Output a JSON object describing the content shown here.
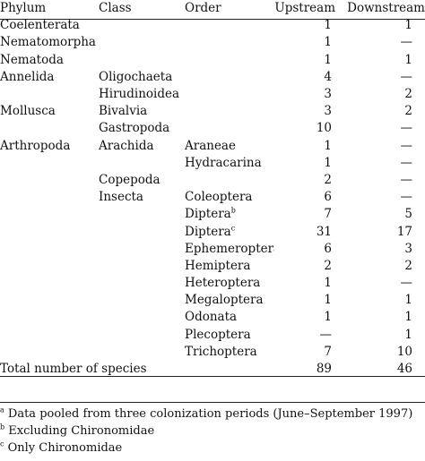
{
  "headers": {
    "phylum": "Phylum",
    "class": "Class",
    "order": "Order",
    "upstream": "Upstream",
    "downstream": "Downstream"
  },
  "rows": [
    {
      "phylum": "Coelenterata",
      "class": "",
      "order": "",
      "sup": "",
      "upstream": "1",
      "downstream": "1"
    },
    {
      "phylum": "Nematomorpha",
      "class": "",
      "order": "",
      "sup": "",
      "upstream": "1",
      "downstream": "—"
    },
    {
      "phylum": "Nematoda",
      "class": "",
      "order": "",
      "sup": "",
      "upstream": "1",
      "downstream": "1"
    },
    {
      "phylum": "Annelida",
      "class": "Oligochaeta",
      "order": "",
      "sup": "",
      "upstream": "4",
      "downstream": "—"
    },
    {
      "phylum": "",
      "class": "Hirudinoidea",
      "order": "",
      "sup": "",
      "upstream": "3",
      "downstream": "2"
    },
    {
      "phylum": "Mollusca",
      "class": "Bivalvia",
      "order": "",
      "sup": "",
      "upstream": "3",
      "downstream": "2"
    },
    {
      "phylum": "",
      "class": "Gastropoda",
      "order": "",
      "sup": "",
      "upstream": "10",
      "downstream": "—"
    },
    {
      "phylum": "Arthropoda",
      "class": "Arachida",
      "order": "Araneae",
      "sup": "",
      "upstream": "1",
      "downstream": "—"
    },
    {
      "phylum": "",
      "class": "",
      "order": "Hydracarina",
      "sup": "",
      "upstream": "1",
      "downstream": "—"
    },
    {
      "phylum": "",
      "class": "Copepoda",
      "order": "",
      "sup": "",
      "upstream": "2",
      "downstream": "—"
    },
    {
      "phylum": "",
      "class": "Insecta",
      "order": "Coleoptera",
      "sup": "",
      "upstream": "6",
      "downstream": "—"
    },
    {
      "phylum": "",
      "class": "",
      "order": "Diptera",
      "sup": "b",
      "upstream": "7",
      "downstream": "5"
    },
    {
      "phylum": "",
      "class": "",
      "order": "Diptera",
      "sup": "c",
      "upstream": "31",
      "downstream": "17"
    },
    {
      "phylum": "",
      "class": "",
      "order": "Ephemeroptera",
      "sup": "",
      "upstream": "6",
      "downstream": "3"
    },
    {
      "phylum": "",
      "class": "",
      "order": "Hemiptera",
      "sup": "",
      "upstream": "2",
      "downstream": "2"
    },
    {
      "phylum": "",
      "class": "",
      "order": "Heteroptera",
      "sup": "",
      "upstream": "1",
      "downstream": "—"
    },
    {
      "phylum": "",
      "class": "",
      "order": "Megaloptera",
      "sup": "",
      "upstream": "1",
      "downstream": "1"
    },
    {
      "phylum": "",
      "class": "",
      "order": "Odonata",
      "sup": "",
      "upstream": "1",
      "downstream": "1"
    },
    {
      "phylum": "",
      "class": "",
      "order": "Plecoptera",
      "sup": "",
      "upstream": "—",
      "downstream": "1"
    },
    {
      "phylum": "",
      "class": "",
      "order": "Trichoptera",
      "sup": "",
      "upstream": "7",
      "downstream": "10"
    }
  ],
  "total": {
    "label": "Total number of species",
    "upstream": "89",
    "downstream": "46"
  },
  "footnotes": [
    {
      "mark": "a",
      "text": " Data pooled from three colonization periods (June–September 1997)"
    },
    {
      "mark": "b",
      "text": " Excluding Chironomidae"
    },
    {
      "mark": "c",
      "text": " Only Chironomidae"
    }
  ]
}
